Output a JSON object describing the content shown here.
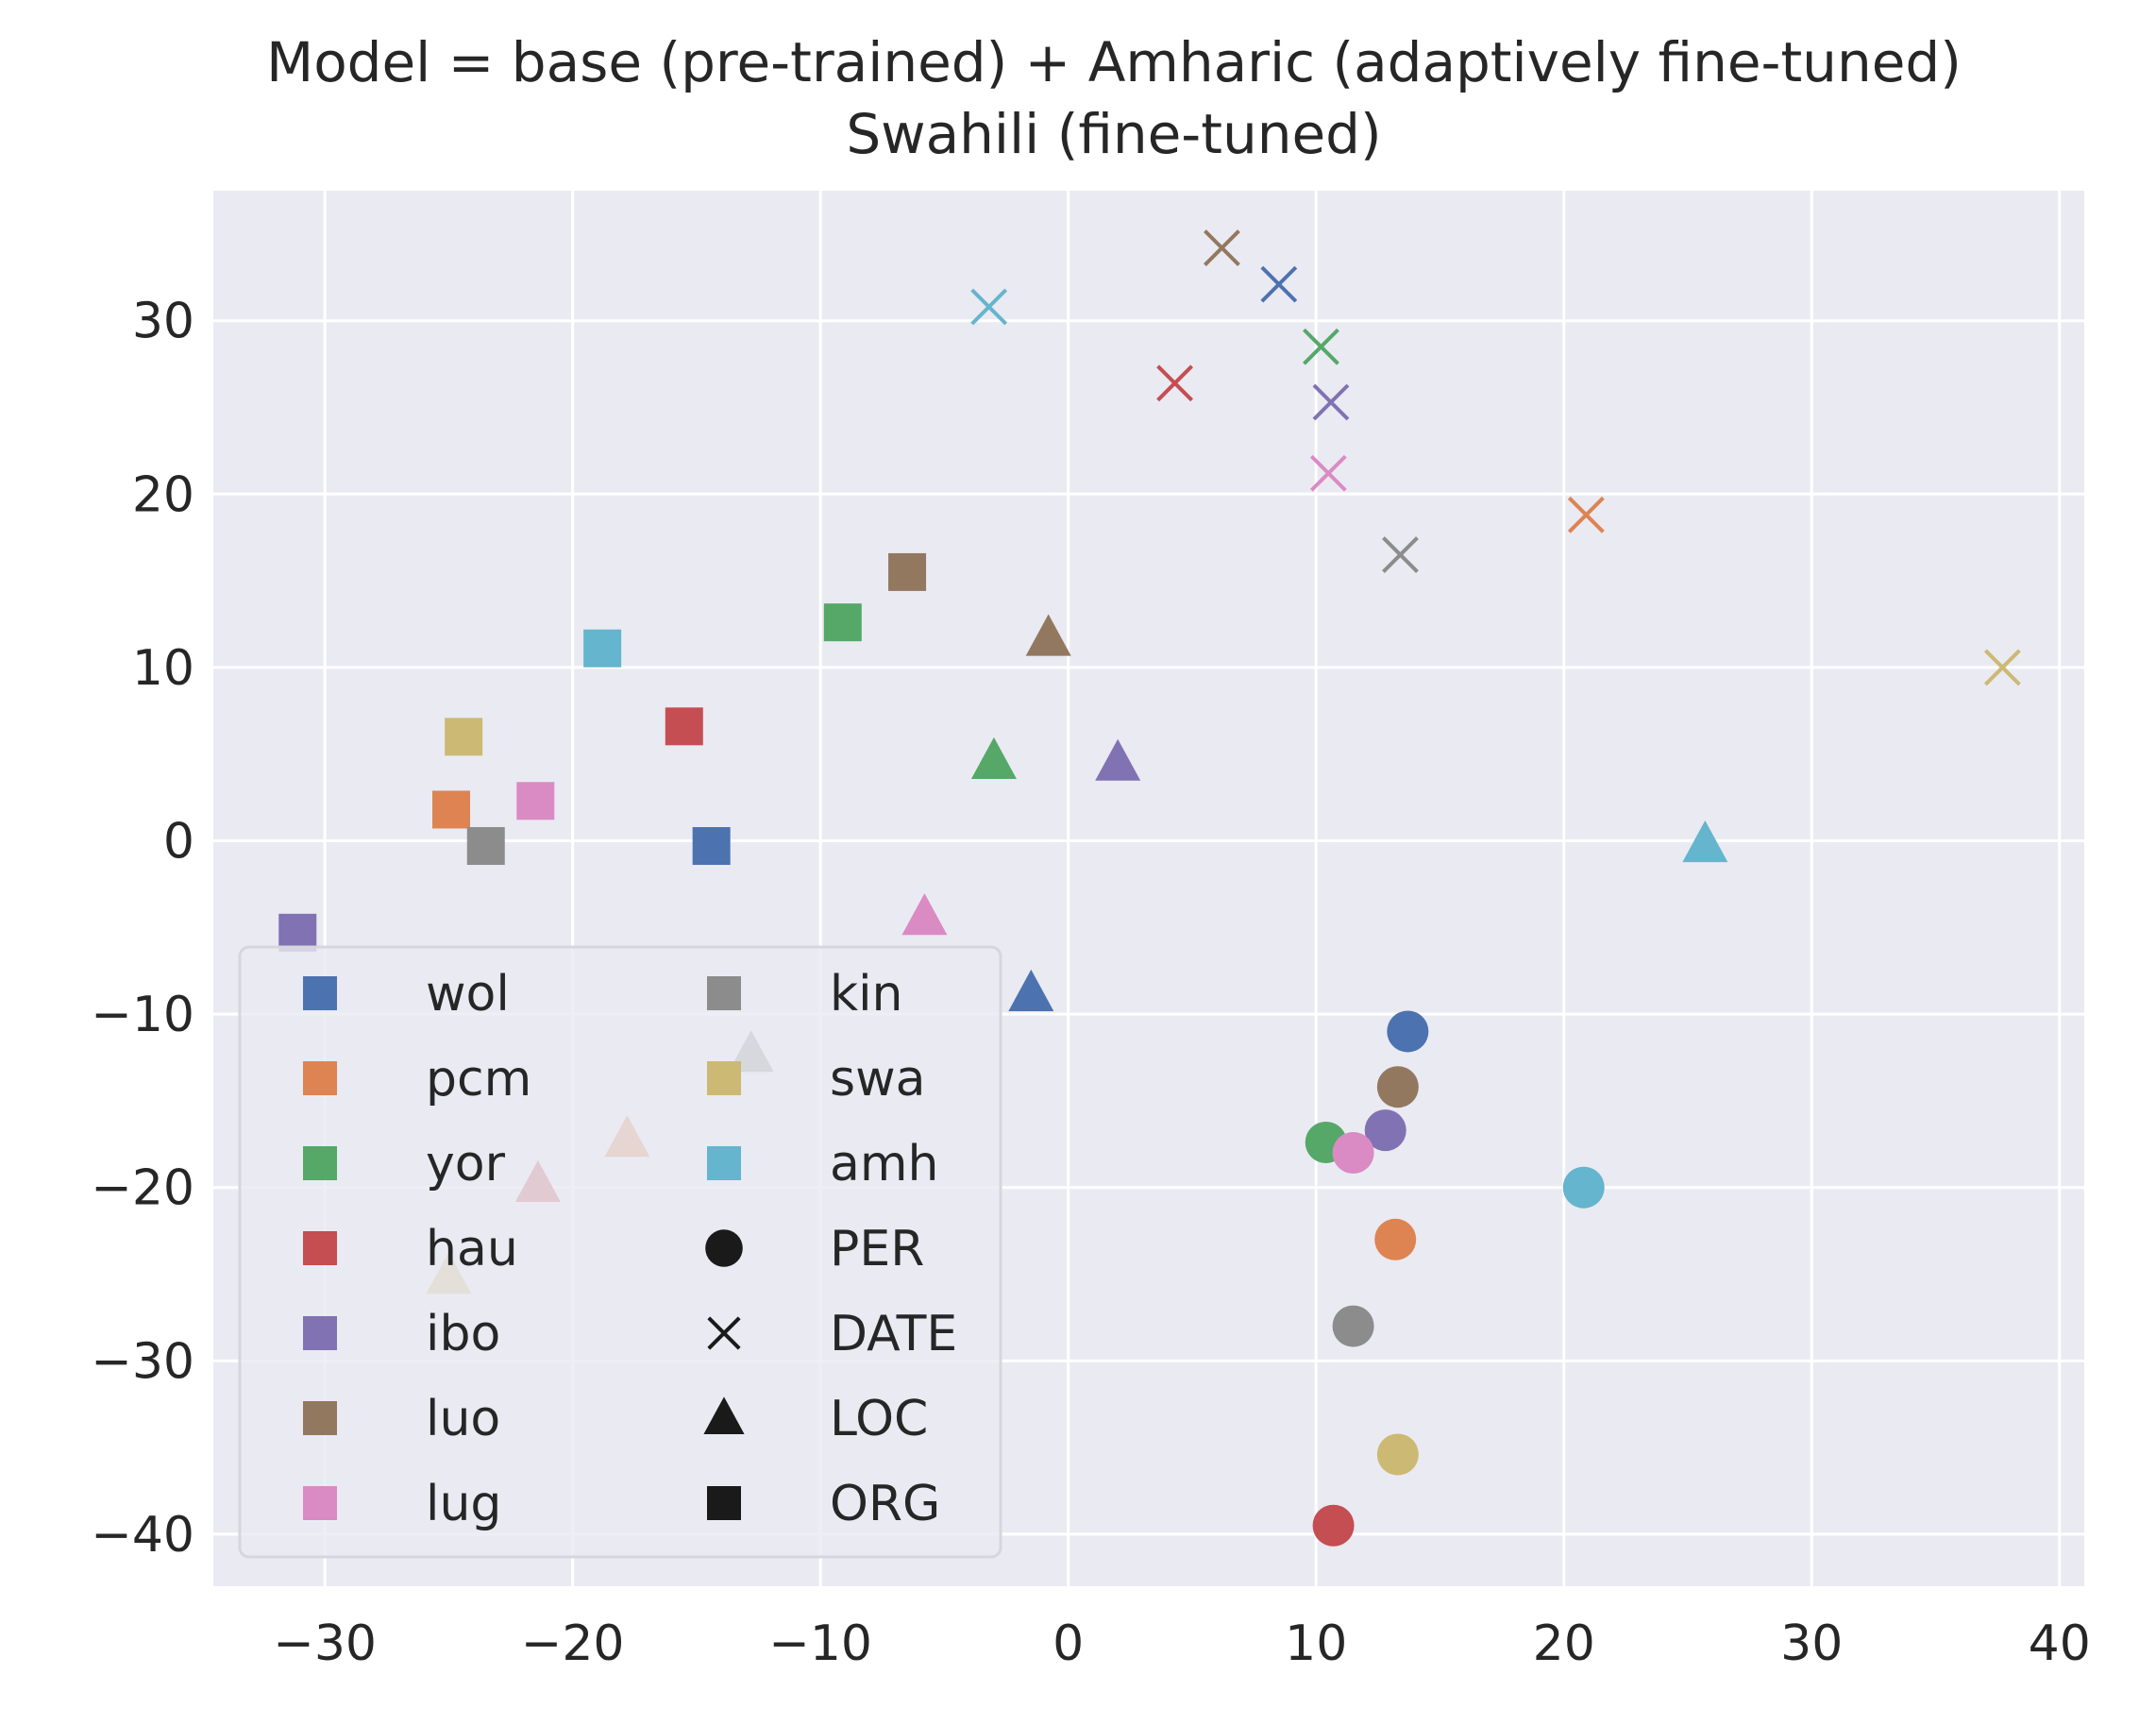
{
  "chart_data": {
    "type": "scatter",
    "title": "Model = base (pre-trained) + Amharic (adaptively fine-tuned)",
    "subtitle": "Swahili (fine-tuned)",
    "xlabel": "",
    "ylabel": "",
    "xlim": [
      -34.5,
      41
    ],
    "ylim": [
      -43,
      37.5
    ],
    "xticks": [
      -30,
      -20,
      -10,
      0,
      10,
      20,
      30,
      40
    ],
    "yticks": [
      -40,
      -30,
      -20,
      -10,
      0,
      10,
      20,
      30
    ],
    "xtick_labels": [
      "−30",
      "−20",
      "−10",
      "0",
      "10",
      "20",
      "30",
      "40"
    ],
    "ytick_labels": [
      "−40",
      "−30",
      "−20",
      "−10",
      "0",
      "10",
      "20",
      "30"
    ],
    "grid": true,
    "background": "#eaeaf2",
    "legend_placement": "lower-left",
    "languages": [
      {
        "name": "wol",
        "color": "#4c72b0"
      },
      {
        "name": "pcm",
        "color": "#dd8452"
      },
      {
        "name": "yor",
        "color": "#55a868"
      },
      {
        "name": "hau",
        "color": "#c44e52"
      },
      {
        "name": "ibo",
        "color": "#8172b3"
      },
      {
        "name": "luo",
        "color": "#937860"
      },
      {
        "name": "lug",
        "color": "#da8bc3"
      },
      {
        "name": "kin",
        "color": "#8c8c8c"
      },
      {
        "name": "swa",
        "color": "#ccb974"
      },
      {
        "name": "amh",
        "color": "#64b5cd"
      }
    ],
    "entity_types": [
      {
        "name": "PER",
        "marker": "circle"
      },
      {
        "name": "DATE",
        "marker": "x"
      },
      {
        "name": "LOC",
        "marker": "triangle"
      },
      {
        "name": "ORG",
        "marker": "square"
      }
    ],
    "points": [
      {
        "lang": "wol",
        "type": "PER",
        "x": 13.7,
        "y": -11.0
      },
      {
        "lang": "pcm",
        "type": "PER",
        "x": 13.2,
        "y": -23.0
      },
      {
        "lang": "yor",
        "type": "PER",
        "x": 10.4,
        "y": -17.4
      },
      {
        "lang": "hau",
        "type": "PER",
        "x": 10.7,
        "y": -39.5
      },
      {
        "lang": "ibo",
        "type": "PER",
        "x": 12.8,
        "y": -16.7
      },
      {
        "lang": "luo",
        "type": "PER",
        "x": 13.3,
        "y": -14.2
      },
      {
        "lang": "lug",
        "type": "PER",
        "x": 11.5,
        "y": -18.0
      },
      {
        "lang": "kin",
        "type": "PER",
        "x": 11.5,
        "y": -28.0
      },
      {
        "lang": "swa",
        "type": "PER",
        "x": 13.3,
        "y": -35.4
      },
      {
        "lang": "amh",
        "type": "PER",
        "x": 20.8,
        "y": -20.0
      },
      {
        "lang": "wol",
        "type": "DATE",
        "x": 8.5,
        "y": 32.1
      },
      {
        "lang": "pcm",
        "type": "DATE",
        "x": 20.9,
        "y": 18.8
      },
      {
        "lang": "yor",
        "type": "DATE",
        "x": 10.2,
        "y": 28.5
      },
      {
        "lang": "hau",
        "type": "DATE",
        "x": 4.3,
        "y": 26.4
      },
      {
        "lang": "ibo",
        "type": "DATE",
        "x": 10.6,
        "y": 25.3
      },
      {
        "lang": "luo",
        "type": "DATE",
        "x": 6.2,
        "y": 34.2
      },
      {
        "lang": "lug",
        "type": "DATE",
        "x": 10.5,
        "y": 21.2
      },
      {
        "lang": "kin",
        "type": "DATE",
        "x": 13.4,
        "y": 16.5
      },
      {
        "lang": "swa",
        "type": "DATE",
        "x": 37.7,
        "y": 10.0
      },
      {
        "lang": "amh",
        "type": "DATE",
        "x": -3.2,
        "y": 30.8
      },
      {
        "lang": "wol",
        "type": "LOC",
        "x": -1.5,
        "y": -8.8
      },
      {
        "lang": "pcm",
        "type": "LOC",
        "x": -17.8,
        "y": -17.2
      },
      {
        "lang": "yor",
        "type": "LOC",
        "x": -3.0,
        "y": 4.6
      },
      {
        "lang": "hau",
        "type": "LOC",
        "x": -21.4,
        "y": -19.8
      },
      {
        "lang": "ibo",
        "type": "LOC",
        "x": 2.0,
        "y": 4.5
      },
      {
        "lang": "luo",
        "type": "LOC",
        "x": -0.8,
        "y": 11.7
      },
      {
        "lang": "lug",
        "type": "LOC",
        "x": -5.8,
        "y": -4.4
      },
      {
        "lang": "kin",
        "type": "LOC",
        "x": -12.8,
        "y": -12.3
      },
      {
        "lang": "swa",
        "type": "LOC",
        "x": -25.0,
        "y": -25.1
      },
      {
        "lang": "amh",
        "type": "LOC",
        "x": 25.7,
        "y": -0.2
      },
      {
        "lang": "wol",
        "type": "ORG",
        "x": -14.4,
        "y": -0.3
      },
      {
        "lang": "pcm",
        "type": "ORG",
        "x": -24.9,
        "y": 1.8
      },
      {
        "lang": "yor",
        "type": "ORG",
        "x": -9.1,
        "y": 12.6
      },
      {
        "lang": "hau",
        "type": "ORG",
        "x": -15.5,
        "y": 6.6
      },
      {
        "lang": "ibo",
        "type": "ORG",
        "x": -31.1,
        "y": -5.3
      },
      {
        "lang": "luo",
        "type": "ORG",
        "x": -6.5,
        "y": 15.5
      },
      {
        "lang": "lug",
        "type": "ORG",
        "x": -21.5,
        "y": 2.3
      },
      {
        "lang": "kin",
        "type": "ORG",
        "x": -23.5,
        "y": -0.3
      },
      {
        "lang": "swa",
        "type": "ORG",
        "x": -24.4,
        "y": 6.0
      },
      {
        "lang": "amh",
        "type": "ORG",
        "x": -18.8,
        "y": 11.1
      }
    ]
  }
}
